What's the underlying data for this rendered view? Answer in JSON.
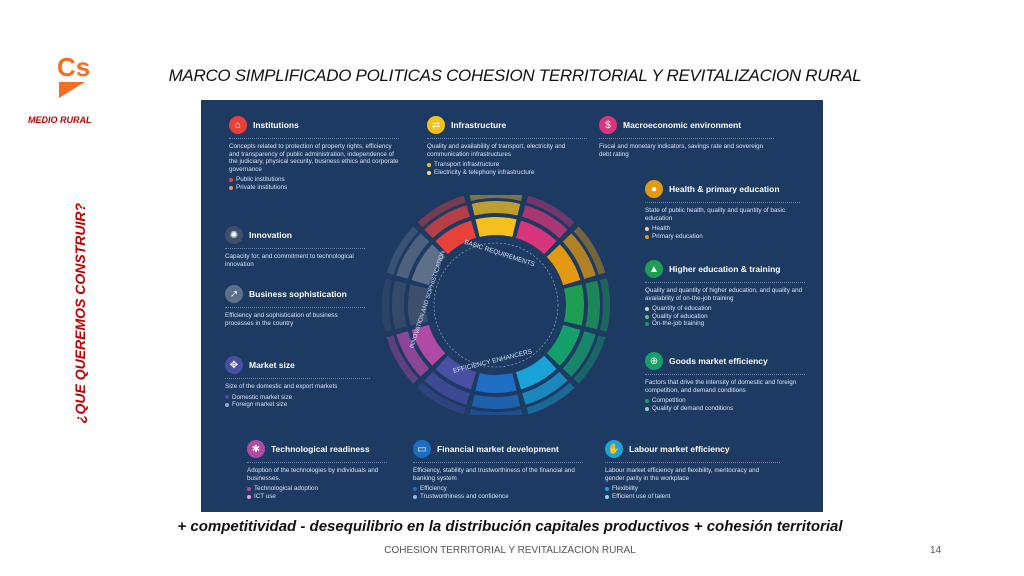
{
  "logo": {
    "text": "Cs",
    "color": "#f26f21"
  },
  "section_label": "MEDIO RURAL",
  "title": "MARCO SIMPLIFICADO POLITICAS COHESION TERRITORIAL Y REVITALIZACION RURAL",
  "vertical_label": "¿QUE QUEREMOS CONSTRUIR?",
  "pillars": {
    "institutions": {
      "name": "Institutions",
      "color": "#e8413c",
      "desc": "Concepts related to protection of property rights, efficiency and transparency of public administration, independence of the judiciary, physical security, business ethics and corporate governance",
      "items": [
        "Public institutions",
        "Private institutions"
      ]
    },
    "infrastructure": {
      "name": "Infrastructure",
      "color": "#f4c01e",
      "desc": "Quality and availability of transport, electricity and communication infrastructures",
      "items": [
        "Transport infrastructure",
        "Electricity & telephony infrastructure"
      ]
    },
    "macro": {
      "name": "Macroeconomic environment",
      "color": "#d9357a",
      "desc": "Fiscal and monetary indicators, savings rate and sovereign debt rating",
      "items": []
    },
    "health": {
      "name": "Health & primary education",
      "color": "#e39a12",
      "desc": "State of public health, quality and quantity of basic education",
      "items": [
        "Health",
        "Primary education"
      ]
    },
    "higher_ed": {
      "name": "Higher education & training",
      "color": "#1f9d55",
      "desc": "Quality and quantity of higher education, and quality and availability of on-the-job training",
      "items": [
        "Quantity of education",
        "Quality of education",
        "On-the-job training"
      ]
    },
    "goods": {
      "name": "Goods market efficiency",
      "color": "#15a06b",
      "desc": "Factors that drive the intensity of domestic and foreign competition, and demand conditions",
      "items": [
        "Competition",
        "Quality of demand conditions"
      ]
    },
    "innovation": {
      "name": "Innovation",
      "color": "#3d4f6b",
      "desc": "Capacity for, and commitment to technological innovation",
      "items": []
    },
    "business": {
      "name": "Business sophistication",
      "color": "#5e6f88",
      "desc": "Efficiency and sophistication of business processes in the country",
      "items": []
    },
    "market_size": {
      "name": "Market size",
      "color": "#4a4fa6",
      "desc": "Size of the domestic and export markets",
      "items": [
        "Domestic market size",
        "Foreign market size"
      ]
    },
    "tech": {
      "name": "Technological readiness",
      "color": "#b04aa6",
      "desc": "Adoption of the technologies by individuals and businesses.",
      "items": [
        "Technological adoption",
        "ICT use"
      ]
    },
    "financial": {
      "name": "Financial market development",
      "color": "#1e6fc4",
      "desc": "Efficiency, stability and trustworthiness of the financial and banking system",
      "items": [
        "Efficiency",
        "Trustworthiness and confidence"
      ]
    },
    "labour": {
      "name": "Labour market efficiency",
      "color": "#1aa3d8",
      "desc": "Labour market efficiency and flexibility, meritocracy and gender parity in the workplace",
      "items": [
        "Flexibility",
        "Efficient use of talent"
      ]
    }
  },
  "wheel": {
    "basic": "BASIC REQUIREMENTS",
    "efficiency": "EFFICIENCY ENHANCERS",
    "innovation": "INNOVATION AND SOPHISTICATION"
  },
  "caption": "+ competitividad  - desequilibrio en la distribución capitales productivos + cohesión territorial",
  "footer": "COHESION TERRITORIAL Y REVITALIZACION RURAL",
  "page_number": "14"
}
